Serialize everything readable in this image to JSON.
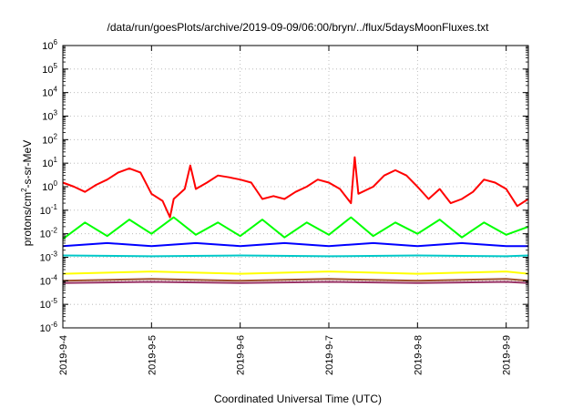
{
  "chart_data": {
    "type": "line",
    "title": "/data/run/goesPlots/archive/2019-09-09/06:00/bryn/../flux/5daysMoonFluxes.txt",
    "xlabel": "Coordinated Universal Time (UTC)",
    "ylabel_parts": {
      "pre": "protons/cm",
      "sup": "2",
      "post": "-s-sr-MeV"
    },
    "y_scale": "log",
    "ylim": [
      1e-06,
      1000000.0
    ],
    "y_ticks": [
      {
        "base": "10",
        "exp": "-6"
      },
      {
        "base": "10",
        "exp": "-5"
      },
      {
        "base": "10",
        "exp": "-4"
      },
      {
        "base": "10",
        "exp": "-3"
      },
      {
        "base": "10",
        "exp": "-2"
      },
      {
        "base": "10",
        "exp": "-1"
      },
      {
        "base": "10",
        "exp": "0"
      },
      {
        "base": "10",
        "exp": "1"
      },
      {
        "base": "10",
        "exp": "2"
      },
      {
        "base": "10",
        "exp": "3"
      },
      {
        "base": "10",
        "exp": "4"
      },
      {
        "base": "10",
        "exp": "5"
      },
      {
        "base": "10",
        "exp": "6"
      }
    ],
    "x_ticks": [
      "2019-9-4",
      "2019-9-5",
      "2019-9-6",
      "2019-9-7",
      "2019-9-8",
      "2019-9-9"
    ],
    "xlim": [
      "2019-09-04T00:00",
      "2019-09-09T06:00"
    ],
    "grid": true,
    "series": [
      {
        "color": "#ff0000",
        "values": [
          [
            "2019-09-04T00:00",
            1.5
          ],
          [
            "2019-09-04T03:00",
            1.0
          ],
          [
            "2019-09-04T06:00",
            0.6
          ],
          [
            "2019-09-04T09:00",
            1.2
          ],
          [
            "2019-09-04T12:00",
            2.0
          ],
          [
            "2019-09-04T15:00",
            4.0
          ],
          [
            "2019-09-04T18:00",
            6.0
          ],
          [
            "2019-09-04T21:00",
            4.0
          ],
          [
            "2019-09-05T00:00",
            0.5
          ],
          [
            "2019-09-05T03:00",
            0.25
          ],
          [
            "2019-09-05T05:00",
            0.05
          ],
          [
            "2019-09-05T06:00",
            0.3
          ],
          [
            "2019-09-05T09:00",
            0.8
          ],
          [
            "2019-09-05T10:30",
            8.0
          ],
          [
            "2019-09-05T12:00",
            0.8
          ],
          [
            "2019-09-05T15:00",
            1.5
          ],
          [
            "2019-09-05T18:00",
            3.0
          ],
          [
            "2019-09-05T21:00",
            2.5
          ],
          [
            "2019-09-06T00:00",
            2.0
          ],
          [
            "2019-09-06T03:00",
            1.5
          ],
          [
            "2019-09-06T06:00",
            0.3
          ],
          [
            "2019-09-06T09:00",
            0.4
          ],
          [
            "2019-09-06T12:00",
            0.3
          ],
          [
            "2019-09-06T15:00",
            0.6
          ],
          [
            "2019-09-06T18:00",
            1.0
          ],
          [
            "2019-09-06T21:00",
            2.0
          ],
          [
            "2019-09-07T00:00",
            1.5
          ],
          [
            "2019-09-07T03:00",
            0.8
          ],
          [
            "2019-09-07T06:00",
            0.2
          ],
          [
            "2019-09-07T07:00",
            18.0
          ],
          [
            "2019-09-07T08:00",
            0.5
          ],
          [
            "2019-09-07T12:00",
            1.0
          ],
          [
            "2019-09-07T15:00",
            3.0
          ],
          [
            "2019-09-07T18:00",
            5.0
          ],
          [
            "2019-09-07T21:00",
            3.0
          ],
          [
            "2019-09-08T00:00",
            1.0
          ],
          [
            "2019-09-08T03:00",
            0.3
          ],
          [
            "2019-09-08T06:00",
            0.8
          ],
          [
            "2019-09-08T09:00",
            0.2
          ],
          [
            "2019-09-08T12:00",
            0.3
          ],
          [
            "2019-09-08T15:00",
            0.6
          ],
          [
            "2019-09-08T18:00",
            2.0
          ],
          [
            "2019-09-08T21:00",
            1.5
          ],
          [
            "2019-09-09T00:00",
            0.8
          ],
          [
            "2019-09-09T03:00",
            0.15
          ],
          [
            "2019-09-09T06:00",
            0.3
          ]
        ]
      },
      {
        "color": "#00ff00",
        "values": [
          [
            "2019-09-04T00:00",
            0.006
          ],
          [
            "2019-09-04T06:00",
            0.03
          ],
          [
            "2019-09-04T12:00",
            0.008
          ],
          [
            "2019-09-04T18:00",
            0.04
          ],
          [
            "2019-09-05T00:00",
            0.01
          ],
          [
            "2019-09-05T06:00",
            0.05
          ],
          [
            "2019-09-05T12:00",
            0.009
          ],
          [
            "2019-09-05T18:00",
            0.03
          ],
          [
            "2019-09-06T00:00",
            0.008
          ],
          [
            "2019-09-06T06:00",
            0.04
          ],
          [
            "2019-09-06T12:00",
            0.007
          ],
          [
            "2019-09-06T18:00",
            0.03
          ],
          [
            "2019-09-07T00:00",
            0.009
          ],
          [
            "2019-09-07T06:00",
            0.05
          ],
          [
            "2019-09-07T12:00",
            0.008
          ],
          [
            "2019-09-07T18:00",
            0.03
          ],
          [
            "2019-09-08T00:00",
            0.01
          ],
          [
            "2019-09-08T06:00",
            0.04
          ],
          [
            "2019-09-08T12:00",
            0.007
          ],
          [
            "2019-09-08T18:00",
            0.03
          ],
          [
            "2019-09-09T00:00",
            0.009
          ],
          [
            "2019-09-09T06:00",
            0.02
          ]
        ]
      },
      {
        "color": "#0000ff",
        "values": [
          [
            "2019-09-04T00:00",
            0.003
          ],
          [
            "2019-09-04T12:00",
            0.004
          ],
          [
            "2019-09-05T00:00",
            0.003
          ],
          [
            "2019-09-05T12:00",
            0.004
          ],
          [
            "2019-09-06T00:00",
            0.003
          ],
          [
            "2019-09-06T12:00",
            0.004
          ],
          [
            "2019-09-07T00:00",
            0.003
          ],
          [
            "2019-09-07T12:00",
            0.004
          ],
          [
            "2019-09-08T00:00",
            0.003
          ],
          [
            "2019-09-08T12:00",
            0.004
          ],
          [
            "2019-09-09T00:00",
            0.003
          ],
          [
            "2019-09-09T06:00",
            0.003
          ]
        ]
      },
      {
        "color": "#00c8c8",
        "values": [
          [
            "2019-09-04T00:00",
            0.0012
          ],
          [
            "2019-09-05T00:00",
            0.0011
          ],
          [
            "2019-09-06T00:00",
            0.0012
          ],
          [
            "2019-09-07T00:00",
            0.0011
          ],
          [
            "2019-09-08T00:00",
            0.0012
          ],
          [
            "2019-09-09T00:00",
            0.0011
          ],
          [
            "2019-09-09T06:00",
            0.0012
          ]
        ]
      },
      {
        "color": "#ffff00",
        "values": [
          [
            "2019-09-04T00:00",
            0.0002
          ],
          [
            "2019-09-05T00:00",
            0.00025
          ],
          [
            "2019-09-06T00:00",
            0.0002
          ],
          [
            "2019-09-07T00:00",
            0.00025
          ],
          [
            "2019-09-08T00:00",
            0.0002
          ],
          [
            "2019-09-09T00:00",
            0.00025
          ],
          [
            "2019-09-09T06:00",
            0.0002
          ]
        ]
      },
      {
        "color": "#a0522d",
        "values": [
          [
            "2019-09-04T00:00",
            0.0001
          ],
          [
            "2019-09-05T00:00",
            0.00012
          ],
          [
            "2019-09-06T00:00",
            0.0001
          ],
          [
            "2019-09-07T00:00",
            0.00012
          ],
          [
            "2019-09-08T00:00",
            0.0001
          ],
          [
            "2019-09-09T00:00",
            0.00012
          ],
          [
            "2019-09-09T06:00",
            0.0001
          ]
        ]
      },
      {
        "color": "#993366",
        "values": [
          [
            "2019-09-04T00:00",
            8e-05
          ],
          [
            "2019-09-05T00:00",
            9e-05
          ],
          [
            "2019-09-06T00:00",
            8e-05
          ],
          [
            "2019-09-07T00:00",
            9e-05
          ],
          [
            "2019-09-08T00:00",
            8e-05
          ],
          [
            "2019-09-09T00:00",
            9e-05
          ],
          [
            "2019-09-09T06:00",
            8e-05
          ]
        ]
      }
    ]
  }
}
